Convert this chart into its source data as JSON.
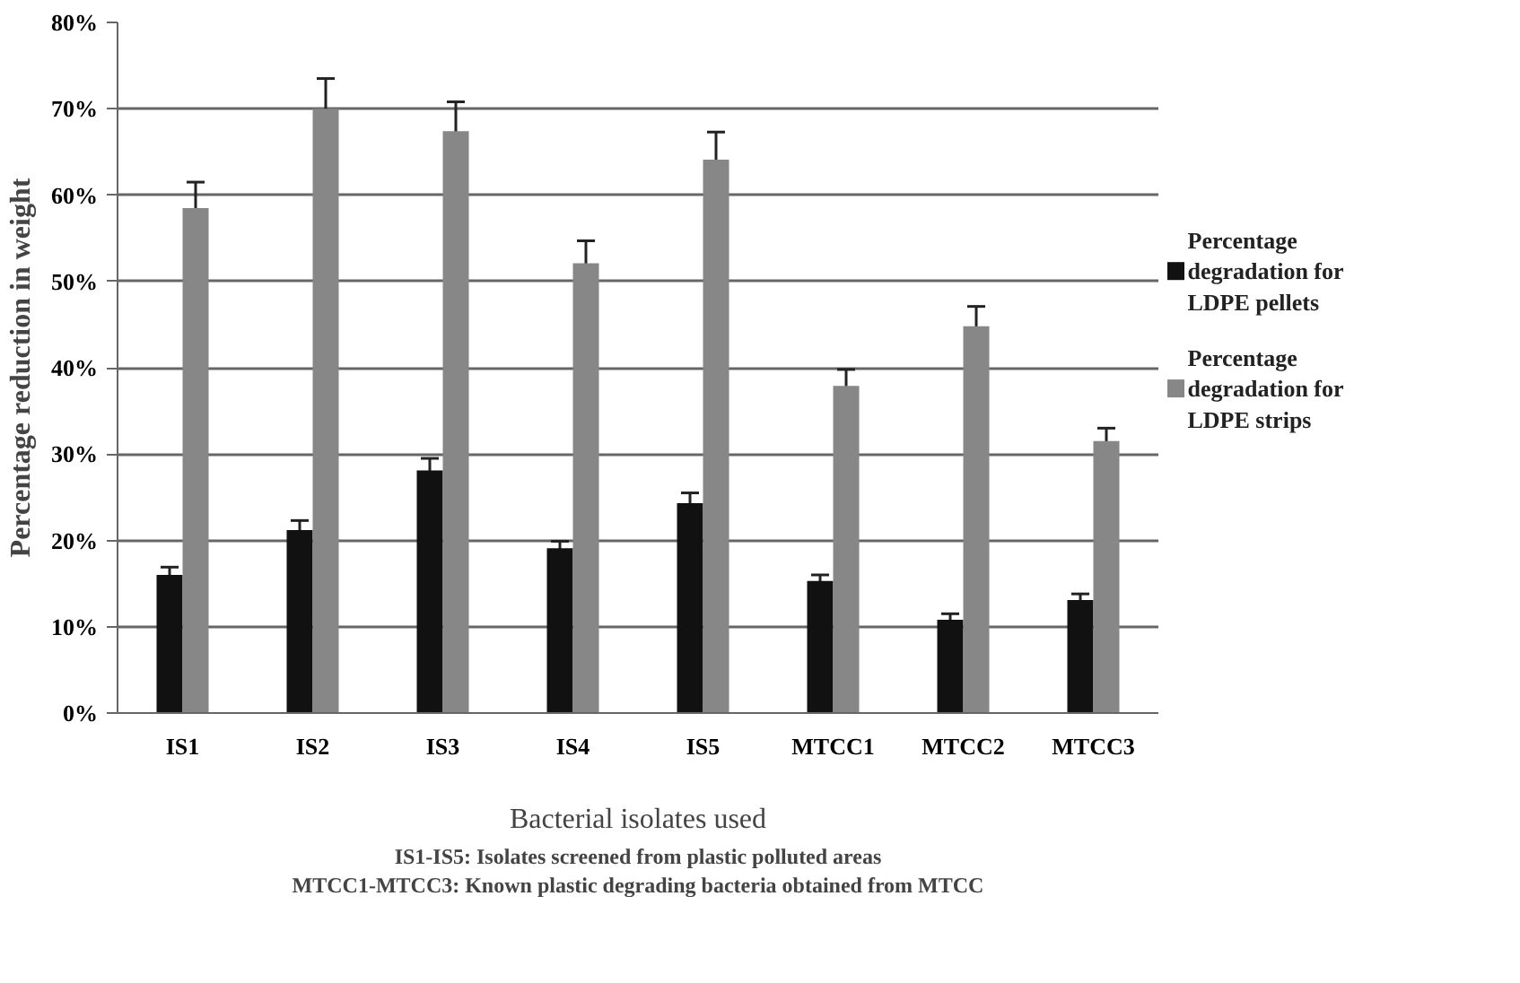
{
  "chart_data": {
    "type": "bar",
    "xlabel": "Bacterial isolates used",
    "ylabel": "Percentage reduction in weight",
    "categories": [
      "IS1",
      "IS2",
      "IS3",
      "IS4",
      "IS5",
      "MTCC1",
      "MTCC2",
      "MTCC3"
    ],
    "series": [
      {
        "name": "Percentage degradation for LDPE pellets",
        "color": "#111111",
        "values": [
          16.0,
          21.2,
          28.1,
          19.1,
          24.3,
          15.3,
          10.8,
          13.1
        ],
        "errors": [
          0.9,
          1.1,
          1.4,
          0.8,
          1.2,
          0.7,
          0.7,
          0.7
        ]
      },
      {
        "name": "Percentage degradation for LDPE strips",
        "color": "#878787",
        "values": [
          58.5,
          70.0,
          67.4,
          52.1,
          64.1,
          37.9,
          44.8,
          31.5
        ],
        "errors": [
          3.0,
          3.5,
          3.4,
          2.6,
          3.2,
          1.9,
          2.3,
          1.5
        ]
      }
    ],
    "ylim": [
      0,
      80
    ],
    "yticks": [
      {
        "value": 0,
        "label": "0%"
      },
      {
        "value": 10,
        "label": "10%"
      },
      {
        "value": 20,
        "label": "20%"
      },
      {
        "value": 30,
        "label": "30%"
      },
      {
        "value": 40,
        "label": "40%"
      },
      {
        "value": 50,
        "label": "50%"
      },
      {
        "value": 60,
        "label": "60%"
      },
      {
        "value": 70,
        "label": "70%"
      },
      {
        "value": 80,
        "label": "80%"
      }
    ],
    "grid": "y",
    "legend": "right",
    "annotations": [
      "IS1-IS5: Isolates screened from plastic polluted areas",
      "MTCC1-MTCC3: Known plastic degrading bacteria obtained from MTCC"
    ]
  }
}
